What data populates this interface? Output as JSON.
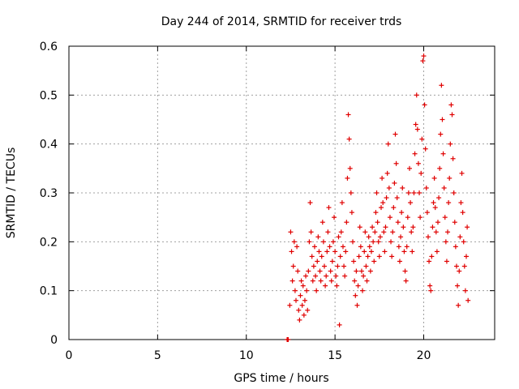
{
  "chart_data": {
    "type": "scatter",
    "title": "Day 244 of 2014, SRMTID for receiver trds",
    "xlabel": "GPS time / hours",
    "ylabel": "SRMTID / TECUs",
    "xlim": [
      0,
      24
    ],
    "ylim": [
      0,
      0.6
    ],
    "x_ticks": [
      0,
      5,
      10,
      15,
      20
    ],
    "y_ticks": [
      0,
      0.1,
      0.2,
      0.3,
      0.4,
      0.5,
      0.6
    ],
    "x_tick_labels": [
      "0",
      "5",
      "10",
      "15",
      "20"
    ],
    "y_tick_labels": [
      "0",
      "0.1",
      "0.2",
      "0.3",
      "0.4",
      "0.5",
      "0.6"
    ],
    "grid": true,
    "marker": "+",
    "series": [
      {
        "name": "SRMTID",
        "color": "#e00000",
        "points": [
          [
            12.3,
            0.0
          ],
          [
            12.32,
            0.0
          ],
          [
            12.36,
            0.0
          ],
          [
            12.45,
            0.07
          ],
          [
            12.5,
            0.22
          ],
          [
            12.55,
            0.18
          ],
          [
            12.6,
            0.12
          ],
          [
            12.65,
            0.15
          ],
          [
            12.7,
            0.2
          ],
          [
            12.75,
            0.1
          ],
          [
            12.8,
            0.08
          ],
          [
            12.85,
            0.19
          ],
          [
            12.9,
            0.14
          ],
          [
            12.95,
            0.06
          ],
          [
            13.0,
            0.04
          ],
          [
            13.05,
            0.09
          ],
          [
            13.1,
            0.12
          ],
          [
            13.15,
            0.07
          ],
          [
            13.2,
            0.11
          ],
          [
            13.25,
            0.05
          ],
          [
            13.3,
            0.08
          ],
          [
            13.35,
            0.13
          ],
          [
            13.4,
            0.1
          ],
          [
            13.45,
            0.06
          ],
          [
            13.5,
            0.14
          ],
          [
            13.55,
            0.2
          ],
          [
            13.6,
            0.28
          ],
          [
            13.65,
            0.22
          ],
          [
            13.7,
            0.17
          ],
          [
            13.75,
            0.12
          ],
          [
            13.8,
            0.15
          ],
          [
            13.85,
            0.19
          ],
          [
            13.9,
            0.13
          ],
          [
            13.95,
            0.1
          ],
          [
            14.0,
            0.16
          ],
          [
            14.05,
            0.21
          ],
          [
            14.1,
            0.18
          ],
          [
            14.15,
            0.14
          ],
          [
            14.2,
            0.12
          ],
          [
            14.25,
            0.17
          ],
          [
            14.3,
            0.24
          ],
          [
            14.35,
            0.2
          ],
          [
            14.4,
            0.15
          ],
          [
            14.45,
            0.11
          ],
          [
            14.5,
            0.13
          ],
          [
            14.55,
            0.18
          ],
          [
            14.6,
            0.22
          ],
          [
            14.65,
            0.27
          ],
          [
            14.7,
            0.19
          ],
          [
            14.75,
            0.14
          ],
          [
            14.8,
            0.12
          ],
          [
            14.85,
            0.16
          ],
          [
            14.9,
            0.2
          ],
          [
            14.95,
            0.25
          ],
          [
            15.0,
            0.18
          ],
          [
            15.05,
            0.13
          ],
          [
            15.1,
            0.11
          ],
          [
            15.15,
            0.15
          ],
          [
            15.2,
            0.21
          ],
          [
            15.25,
            0.03
          ],
          [
            15.3,
            0.17
          ],
          [
            15.35,
            0.22
          ],
          [
            15.4,
            0.28
          ],
          [
            15.45,
            0.19
          ],
          [
            15.5,
            0.15
          ],
          [
            15.55,
            0.13
          ],
          [
            15.6,
            0.18
          ],
          [
            15.65,
            0.24
          ],
          [
            15.7,
            0.33
          ],
          [
            15.75,
            0.46
          ],
          [
            15.8,
            0.41
          ],
          [
            15.85,
            0.35
          ],
          [
            15.9,
            0.3
          ],
          [
            15.95,
            0.26
          ],
          [
            16.0,
            0.2
          ],
          [
            16.05,
            0.16
          ],
          [
            16.1,
            0.12
          ],
          [
            16.15,
            0.09
          ],
          [
            16.2,
            0.14
          ],
          [
            16.25,
            0.07
          ],
          [
            16.3,
            0.11
          ],
          [
            16.35,
            0.17
          ],
          [
            16.4,
            0.23
          ],
          [
            16.45,
            0.19
          ],
          [
            16.5,
            0.14
          ],
          [
            16.55,
            0.1
          ],
          [
            16.6,
            0.13
          ],
          [
            16.65,
            0.18
          ],
          [
            16.7,
            0.22
          ],
          [
            16.75,
            0.15
          ],
          [
            16.8,
            0.12
          ],
          [
            16.85,
            0.17
          ],
          [
            16.9,
            0.21
          ],
          [
            16.95,
            0.19
          ],
          [
            17.0,
            0.14
          ],
          [
            17.05,
            0.18
          ],
          [
            17.1,
            0.23
          ],
          [
            17.15,
            0.2
          ],
          [
            17.2,
            0.16
          ],
          [
            17.25,
            0.22
          ],
          [
            17.3,
            0.26
          ],
          [
            17.35,
            0.3
          ],
          [
            17.4,
            0.24
          ],
          [
            17.45,
            0.2
          ],
          [
            17.5,
            0.17
          ],
          [
            17.55,
            0.21
          ],
          [
            17.6,
            0.27
          ],
          [
            17.65,
            0.33
          ],
          [
            17.7,
            0.28
          ],
          [
            17.75,
            0.22
          ],
          [
            17.8,
            0.18
          ],
          [
            17.85,
            0.23
          ],
          [
            17.9,
            0.29
          ],
          [
            17.95,
            0.34
          ],
          [
            18.0,
            0.4
          ],
          [
            18.05,
            0.31
          ],
          [
            18.1,
            0.25
          ],
          [
            18.15,
            0.2
          ],
          [
            18.2,
            0.17
          ],
          [
            18.25,
            0.22
          ],
          [
            18.3,
            0.27
          ],
          [
            18.35,
            0.32
          ],
          [
            18.4,
            0.42
          ],
          [
            18.45,
            0.36
          ],
          [
            18.5,
            0.29
          ],
          [
            18.55,
            0.24
          ],
          [
            18.6,
            0.19
          ],
          [
            18.65,
            0.16
          ],
          [
            18.7,
            0.21
          ],
          [
            18.75,
            0.26
          ],
          [
            18.8,
            0.31
          ],
          [
            18.85,
            0.23
          ],
          [
            18.9,
            0.18
          ],
          [
            18.95,
            0.14
          ],
          [
            19.0,
            0.12
          ],
          [
            19.05,
            0.19
          ],
          [
            19.1,
            0.25
          ],
          [
            19.15,
            0.3
          ],
          [
            19.2,
            0.35
          ],
          [
            19.25,
            0.28
          ],
          [
            19.3,
            0.22
          ],
          [
            19.35,
            0.18
          ],
          [
            19.4,
            0.23
          ],
          [
            19.45,
            0.3
          ],
          [
            19.5,
            0.38
          ],
          [
            19.55,
            0.44
          ],
          [
            19.6,
            0.5
          ],
          [
            19.65,
            0.43
          ],
          [
            19.7,
            0.36
          ],
          [
            19.75,
            0.3
          ],
          [
            19.8,
            0.25
          ],
          [
            19.85,
            0.34
          ],
          [
            19.9,
            0.41
          ],
          [
            19.95,
            0.57
          ],
          [
            20.0,
            0.58
          ],
          [
            20.05,
            0.48
          ],
          [
            20.1,
            0.39
          ],
          [
            20.15,
            0.31
          ],
          [
            20.2,
            0.26
          ],
          [
            20.25,
            0.21
          ],
          [
            20.3,
            0.16
          ],
          [
            20.35,
            0.11
          ],
          [
            20.4,
            0.1
          ],
          [
            20.45,
            0.17
          ],
          [
            20.5,
            0.23
          ],
          [
            20.55,
            0.28
          ],
          [
            20.6,
            0.33
          ],
          [
            20.65,
            0.27
          ],
          [
            20.7,
            0.22
          ],
          [
            20.75,
            0.18
          ],
          [
            20.8,
            0.24
          ],
          [
            20.85,
            0.29
          ],
          [
            20.9,
            0.35
          ],
          [
            20.95,
            0.42
          ],
          [
            21.0,
            0.52
          ],
          [
            21.05,
            0.45
          ],
          [
            21.1,
            0.38
          ],
          [
            21.15,
            0.31
          ],
          [
            21.2,
            0.25
          ],
          [
            21.25,
            0.2
          ],
          [
            21.3,
            0.16
          ],
          [
            21.35,
            0.22
          ],
          [
            21.4,
            0.28
          ],
          [
            21.45,
            0.33
          ],
          [
            21.5,
            0.4
          ],
          [
            21.55,
            0.48
          ],
          [
            21.6,
            0.46
          ],
          [
            21.65,
            0.37
          ],
          [
            21.7,
            0.3
          ],
          [
            21.75,
            0.24
          ],
          [
            21.8,
            0.19
          ],
          [
            21.85,
            0.15
          ],
          [
            21.9,
            0.11
          ],
          [
            21.95,
            0.07
          ],
          [
            22.0,
            0.14
          ],
          [
            22.05,
            0.21
          ],
          [
            22.1,
            0.28
          ],
          [
            22.15,
            0.34
          ],
          [
            22.2,
            0.26
          ],
          [
            22.25,
            0.2
          ],
          [
            22.3,
            0.15
          ],
          [
            22.35,
            0.1
          ],
          [
            22.4,
            0.17
          ],
          [
            22.45,
            0.23
          ],
          [
            22.5,
            0.08
          ]
        ]
      }
    ]
  }
}
